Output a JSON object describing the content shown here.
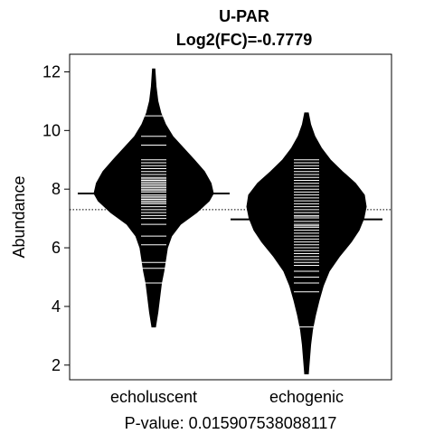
{
  "chart_data": {
    "type": "beanplot",
    "title": "U-PAR",
    "subtitle": "Log2(FC)=-0.7779",
    "xlabel": "P-value: 0.015907538088117",
    "ylabel": "Abundance",
    "categories": [
      "echoluscent",
      "echogenic"
    ],
    "ylim": [
      1.5,
      12.6
    ],
    "yticks": [
      2,
      4,
      6,
      8,
      10,
      12
    ],
    "overall_mean": 7.3,
    "groups": [
      {
        "name": "echoluscent",
        "mean": 7.85,
        "density": [
          [
            3.3,
            0.03
          ],
          [
            3.8,
            0.07
          ],
          [
            4.3,
            0.1
          ],
          [
            4.8,
            0.13
          ],
          [
            5.2,
            0.17
          ],
          [
            5.6,
            0.2
          ],
          [
            6.0,
            0.23
          ],
          [
            6.4,
            0.3
          ],
          [
            6.8,
            0.45
          ],
          [
            7.2,
            0.72
          ],
          [
            7.6,
            0.93
          ],
          [
            7.85,
            1.0
          ],
          [
            8.2,
            0.96
          ],
          [
            8.6,
            0.85
          ],
          [
            9.0,
            0.68
          ],
          [
            9.4,
            0.5
          ],
          [
            9.8,
            0.32
          ],
          [
            10.2,
            0.2
          ],
          [
            10.6,
            0.12
          ],
          [
            11.0,
            0.07
          ],
          [
            11.5,
            0.04
          ],
          [
            12.1,
            0.02
          ]
        ],
        "values": [
          4.8,
          5.3,
          5.5,
          6.1,
          6.4,
          6.8,
          7.0,
          7.1,
          7.2,
          7.3,
          7.4,
          7.5,
          7.55,
          7.6,
          7.65,
          7.7,
          7.75,
          7.8,
          7.85,
          7.9,
          7.95,
          8.0,
          8.05,
          8.1,
          8.15,
          8.2,
          8.25,
          8.3,
          8.35,
          8.4,
          8.5,
          8.6,
          8.7,
          8.8,
          8.9,
          9.0,
          9.5,
          9.8,
          10.5
        ]
      },
      {
        "name": "echogenic",
        "mean": 6.97,
        "density": [
          [
            1.7,
            0.03
          ],
          [
            2.2,
            0.05
          ],
          [
            2.7,
            0.07
          ],
          [
            3.2,
            0.1
          ],
          [
            3.7,
            0.15
          ],
          [
            4.2,
            0.21
          ],
          [
            4.7,
            0.28
          ],
          [
            5.2,
            0.38
          ],
          [
            5.7,
            0.55
          ],
          [
            6.2,
            0.75
          ],
          [
            6.6,
            0.88
          ],
          [
            7.0,
            0.96
          ],
          [
            7.4,
            1.0
          ],
          [
            7.8,
            0.97
          ],
          [
            8.2,
            0.82
          ],
          [
            8.6,
            0.6
          ],
          [
            9.0,
            0.4
          ],
          [
            9.4,
            0.25
          ],
          [
            9.8,
            0.14
          ],
          [
            10.2,
            0.07
          ],
          [
            10.6,
            0.03
          ]
        ],
        "values": [
          3.3,
          4.5,
          4.8,
          5.0,
          5.2,
          5.4,
          5.5,
          5.6,
          5.7,
          5.8,
          5.9,
          6.0,
          6.1,
          6.2,
          6.3,
          6.4,
          6.5,
          6.6,
          6.7,
          6.75,
          6.8,
          6.9,
          7.0,
          7.05,
          7.1,
          7.2,
          7.3,
          7.4,
          7.5,
          7.6,
          7.7,
          7.8,
          7.9,
          8.0,
          8.1,
          8.2,
          8.3,
          8.4,
          8.5,
          8.6,
          8.7,
          8.8,
          8.9,
          9.0
        ]
      }
    ]
  }
}
